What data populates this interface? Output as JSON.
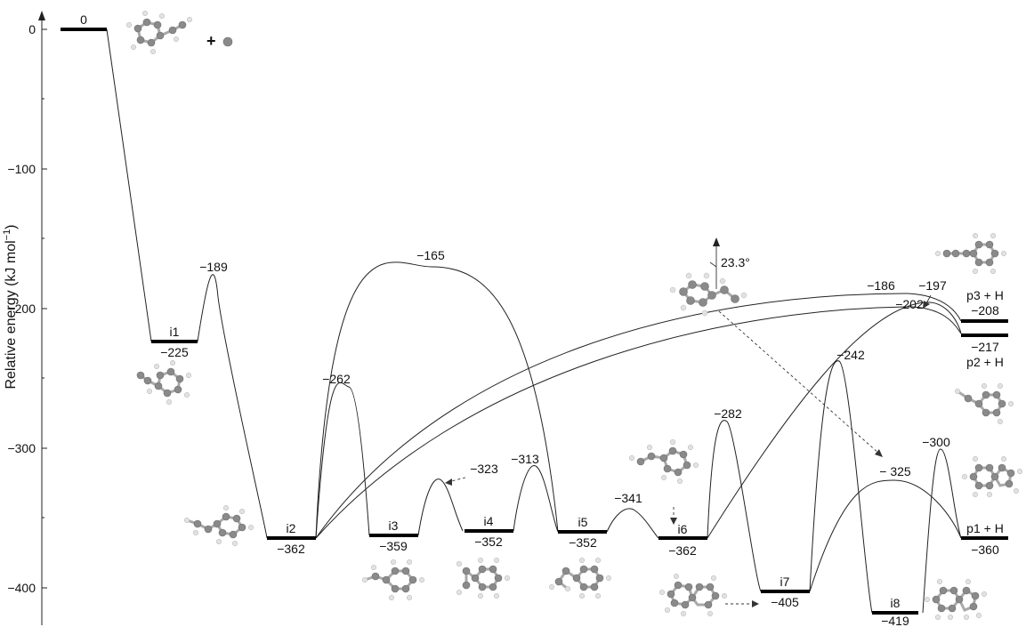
{
  "axis": {
    "ylabel": "Relative energy (kJ mol",
    "ylabel_sup": "−1",
    "ylabel_close": ")",
    "ticks": [
      {
        "value": 0,
        "label": "0"
      },
      {
        "value": -100,
        "label": "−100"
      },
      {
        "value": -200,
        "label": "−200"
      },
      {
        "value": -300,
        "label": "−300"
      },
      {
        "value": -400,
        "label": "−400"
      }
    ]
  },
  "reactant_plus": "+",
  "angle_label": "23.3°",
  "levels": [
    {
      "id": "start",
      "name": "",
      "energy": 0,
      "label": "0"
    },
    {
      "id": "i1",
      "name": "i1",
      "energy": -225,
      "label": "−225"
    },
    {
      "id": "i2",
      "name": "i2",
      "energy": -362,
      "label": "−362"
    },
    {
      "id": "i3",
      "name": "i3",
      "energy": -359,
      "label": "−359"
    },
    {
      "id": "i4",
      "name": "i4",
      "energy": -352,
      "label": "−352"
    },
    {
      "id": "i5",
      "name": "i5",
      "energy": -352,
      "label": "−352"
    },
    {
      "id": "i6",
      "name": "i6",
      "energy": -362,
      "label": "−362"
    },
    {
      "id": "i7",
      "name": "i7",
      "energy": -405,
      "label": "−405"
    },
    {
      "id": "i8",
      "name": "i8",
      "energy": -419,
      "label": "−419"
    },
    {
      "id": "p3",
      "name": "p3 + H",
      "energy": -208,
      "label": "−208"
    },
    {
      "id": "p2",
      "name": "p2 + H",
      "energy": -217,
      "label": "−217"
    },
    {
      "id": "p1",
      "name": "p1 + H",
      "energy": -360,
      "label": "−360"
    }
  ],
  "transition_states": [
    {
      "from": "i1",
      "to": "i2",
      "energy": -189,
      "label": "−189"
    },
    {
      "from": "i2",
      "to": "i3",
      "energy": -262,
      "label": "−262"
    },
    {
      "from": "i2",
      "to": "i5",
      "energy": -165,
      "label": "−165"
    },
    {
      "from": "i3",
      "to": "i4",
      "energy": -323,
      "label": "−323"
    },
    {
      "from": "i4",
      "to": "i5",
      "energy": -313,
      "label": "−313"
    },
    {
      "from": "i5",
      "to": "i6",
      "energy": -341,
      "label": "−341"
    },
    {
      "from": "i6",
      "to": "i7",
      "energy": -282,
      "label": "−282"
    },
    {
      "from": "i2",
      "to": "p3",
      "energy": -186,
      "label": "−186"
    },
    {
      "from": "i2",
      "to": "p2",
      "energy": -202,
      "label": "−202"
    },
    {
      "from": "i6",
      "to": "p2",
      "energy": -197,
      "label": "−197"
    },
    {
      "from": "i7",
      "to": "i8",
      "energy": -242,
      "label": "−242"
    },
    {
      "from": "i7",
      "to": "p1",
      "energy": -325,
      "label": "− 325"
    },
    {
      "from": "i8",
      "to": "p1",
      "energy": -300,
      "label": "−300"
    }
  ]
}
